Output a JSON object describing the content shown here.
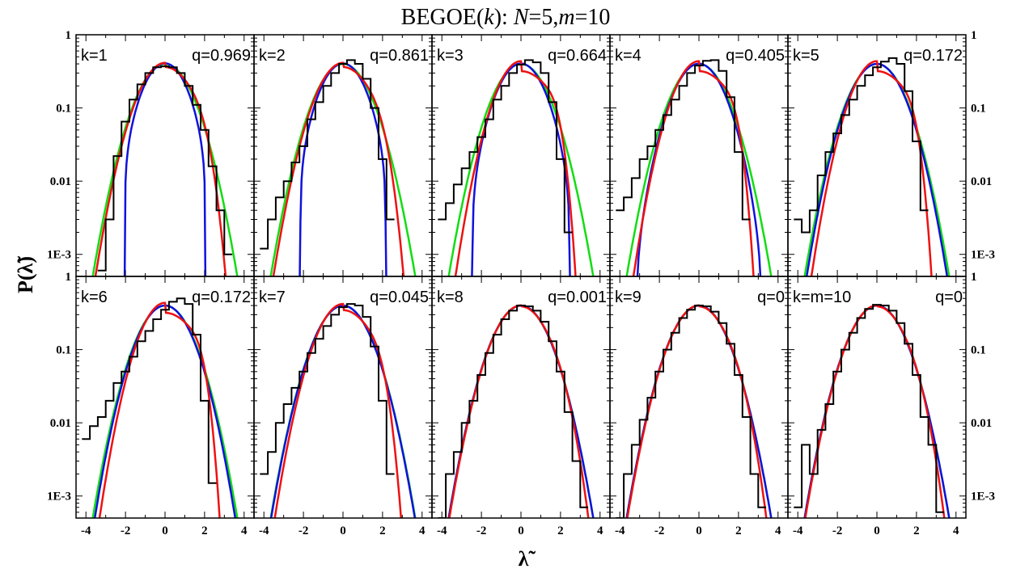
{
  "figure": {
    "title_pre": "BEGOE(",
    "title_k": "k",
    "title_mid": "): ",
    "title_N": "N",
    "title_Nval": "=5,",
    "title_m": "m",
    "title_mval": "=10",
    "ylabel": "P(λ̃)",
    "xlabel": "λ̃"
  },
  "colors": {
    "histogram": "#000000",
    "red_fit": "#ee1111",
    "blue_curve": "#1111dd",
    "green_curve": "#11dd11"
  },
  "chart_data": {
    "type": "line",
    "grid": false,
    "layout": "2 rows x 5 columns",
    "x_range": [
      -4.5,
      4.5
    ],
    "y_range": [
      0.0005,
      1
    ],
    "y_scale": "log",
    "x_ticks": [
      "-4",
      "-2",
      "0",
      "2",
      "4"
    ],
    "y_ticks": [
      "1E-3",
      "0.01",
      "0.1",
      "1"
    ],
    "panels": [
      {
        "k_label": "k=1",
        "q_label": "q=0.969",
        "q": 0.969,
        "hist_x": [
          -3.2,
          -2.8,
          -2.4,
          -2.0,
          -1.6,
          -1.2,
          -0.8,
          -0.4,
          0.0,
          0.4,
          0.8,
          1.2,
          1.6,
          2.0,
          2.4,
          2.8,
          3.2
        ],
        "hist_y": [
          0.0006,
          0.003,
          0.022,
          0.065,
          0.13,
          0.21,
          0.3,
          0.36,
          0.37,
          0.36,
          0.3,
          0.2,
          0.11,
          0.05,
          0.016,
          0.004,
          0.001
        ]
      },
      {
        "k_label": "k=2",
        "q_label": "q=0.861",
        "q": 0.861,
        "hist_x": [
          -4.0,
          -3.6,
          -3.2,
          -2.8,
          -2.4,
          -2.0,
          -1.6,
          -1.2,
          -0.8,
          -0.4,
          0.0,
          0.4,
          0.8,
          1.2,
          1.6,
          2.0,
          2.4
        ],
        "hist_y": [
          0.0012,
          0.003,
          0.006,
          0.01,
          0.018,
          0.03,
          0.07,
          0.12,
          0.2,
          0.3,
          0.4,
          0.45,
          0.4,
          0.25,
          0.1,
          0.02,
          0.003
        ]
      },
      {
        "k_label": "k=3",
        "q_label": "q=0.664",
        "q": 0.664,
        "hist_x": [
          -4.0,
          -3.6,
          -3.2,
          -2.8,
          -2.4,
          -2.0,
          -1.6,
          -1.2,
          -0.8,
          -0.4,
          0.0,
          0.4,
          0.8,
          1.2,
          1.6,
          2.0,
          2.4
        ],
        "hist_y": [
          0.003,
          0.005,
          0.009,
          0.015,
          0.025,
          0.04,
          0.07,
          0.13,
          0.2,
          0.3,
          0.39,
          0.45,
          0.42,
          0.3,
          0.12,
          0.02,
          0.002
        ]
      },
      {
        "k_label": "k=4",
        "q_label": "q=0.405",
        "q": 0.405,
        "hist_x": [
          -4.0,
          -3.6,
          -3.2,
          -2.8,
          -2.4,
          -2.0,
          -1.6,
          -1.2,
          -0.8,
          -0.4,
          0.0,
          0.4,
          0.8,
          1.2,
          1.6,
          2.0,
          2.4
        ],
        "hist_y": [
          0.004,
          0.006,
          0.011,
          0.02,
          0.03,
          0.05,
          0.08,
          0.13,
          0.2,
          0.3,
          0.38,
          0.44,
          0.45,
          0.32,
          0.14,
          0.025,
          0.003
        ]
      },
      {
        "k_label": "k=5",
        "q_label": "q=0.172",
        "q": 0.172,
        "hist_x": [
          -4.0,
          -3.6,
          -3.2,
          -2.8,
          -2.4,
          -2.0,
          -1.6,
          -1.2,
          -0.8,
          -0.4,
          0.0,
          0.4,
          0.8,
          1.2,
          1.6,
          2.0,
          2.4
        ],
        "hist_y": [
          0.003,
          0.002,
          0.004,
          0.012,
          0.025,
          0.045,
          0.08,
          0.13,
          0.2,
          0.28,
          0.36,
          0.43,
          0.48,
          0.4,
          0.17,
          0.035,
          0.004
        ]
      },
      {
        "k_label": "k=6",
        "q_label": "q=0.172",
        "q": 0.172,
        "hist_x": [
          -4.0,
          -3.6,
          -3.2,
          -2.8,
          -2.4,
          -2.0,
          -1.6,
          -1.2,
          -0.8,
          -0.4,
          0.0,
          0.4,
          0.8,
          1.2,
          1.6,
          2.0,
          2.4
        ],
        "hist_y": [
          0.006,
          0.009,
          0.012,
          0.02,
          0.035,
          0.05,
          0.08,
          0.13,
          0.18,
          0.26,
          0.35,
          0.45,
          0.5,
          0.42,
          0.16,
          0.02,
          0.0015
        ]
      },
      {
        "k_label": "k=7",
        "q_label": "q=0.045",
        "q": 0.045,
        "hist_x": [
          -4.0,
          -3.6,
          -3.2,
          -2.8,
          -2.4,
          -2.0,
          -1.6,
          -1.2,
          -0.8,
          -0.4,
          0.0,
          0.4,
          0.8,
          1.2,
          1.6,
          2.0,
          2.4
        ],
        "hist_y": [
          0.002,
          0.004,
          0.01,
          0.018,
          0.03,
          0.05,
          0.09,
          0.14,
          0.21,
          0.3,
          0.38,
          0.42,
          0.4,
          0.28,
          0.11,
          0.02,
          0.002
        ]
      },
      {
        "k_label": "k=8",
        "q_label": "q=0.001",
        "q": 0.001,
        "hist_x": [
          -4.0,
          -3.6,
          -3.2,
          -2.8,
          -2.4,
          -2.0,
          -1.6,
          -1.2,
          -0.8,
          -0.4,
          0.0,
          0.4,
          0.8,
          1.2,
          1.6,
          2.0,
          2.4,
          2.8,
          3.2
        ],
        "hist_y": [
          0.0005,
          0.002,
          0.004,
          0.01,
          0.02,
          0.045,
          0.09,
          0.16,
          0.26,
          0.34,
          0.4,
          0.39,
          0.34,
          0.24,
          0.13,
          0.05,
          0.014,
          0.003,
          0.0007
        ]
      },
      {
        "k_label": "k=9",
        "q_label": "q=0",
        "q": 0,
        "hist_x": [
          -4.0,
          -3.6,
          -3.2,
          -2.8,
          -2.4,
          -2.0,
          -1.6,
          -1.2,
          -0.8,
          -0.4,
          0.0,
          0.4,
          0.8,
          1.2,
          1.6,
          2.0,
          2.4,
          2.8,
          3.2
        ],
        "hist_y": [
          0.0005,
          0.002,
          0.005,
          0.011,
          0.022,
          0.05,
          0.1,
          0.17,
          0.27,
          0.35,
          0.4,
          0.39,
          0.33,
          0.23,
          0.12,
          0.045,
          0.012,
          0.002,
          0.0007
        ]
      },
      {
        "k_label": "k=m=10",
        "q_label": "q=0",
        "q": 0,
        "hist_x": [
          -4.0,
          -3.6,
          -3.2,
          -2.8,
          -2.4,
          -2.0,
          -1.6,
          -1.2,
          -0.8,
          -0.4,
          0.0,
          0.4,
          0.8,
          1.2,
          1.6,
          2.0,
          2.4,
          2.8,
          3.2
        ],
        "hist_y": [
          0.0007,
          0.005,
          0.002,
          0.008,
          0.018,
          0.05,
          0.1,
          0.17,
          0.27,
          0.36,
          0.41,
          0.4,
          0.34,
          0.23,
          0.12,
          0.045,
          0.012,
          0.005,
          0.0006
        ]
      }
    ],
    "curves": [
      {
        "color_key": "blue_curve",
        "description": "q-Hermite density at panel q"
      },
      {
        "color_key": "green_curve",
        "description": "Gaussian"
      },
      {
        "color_key": "red_fit",
        "description": "fit to histogram"
      }
    ]
  }
}
